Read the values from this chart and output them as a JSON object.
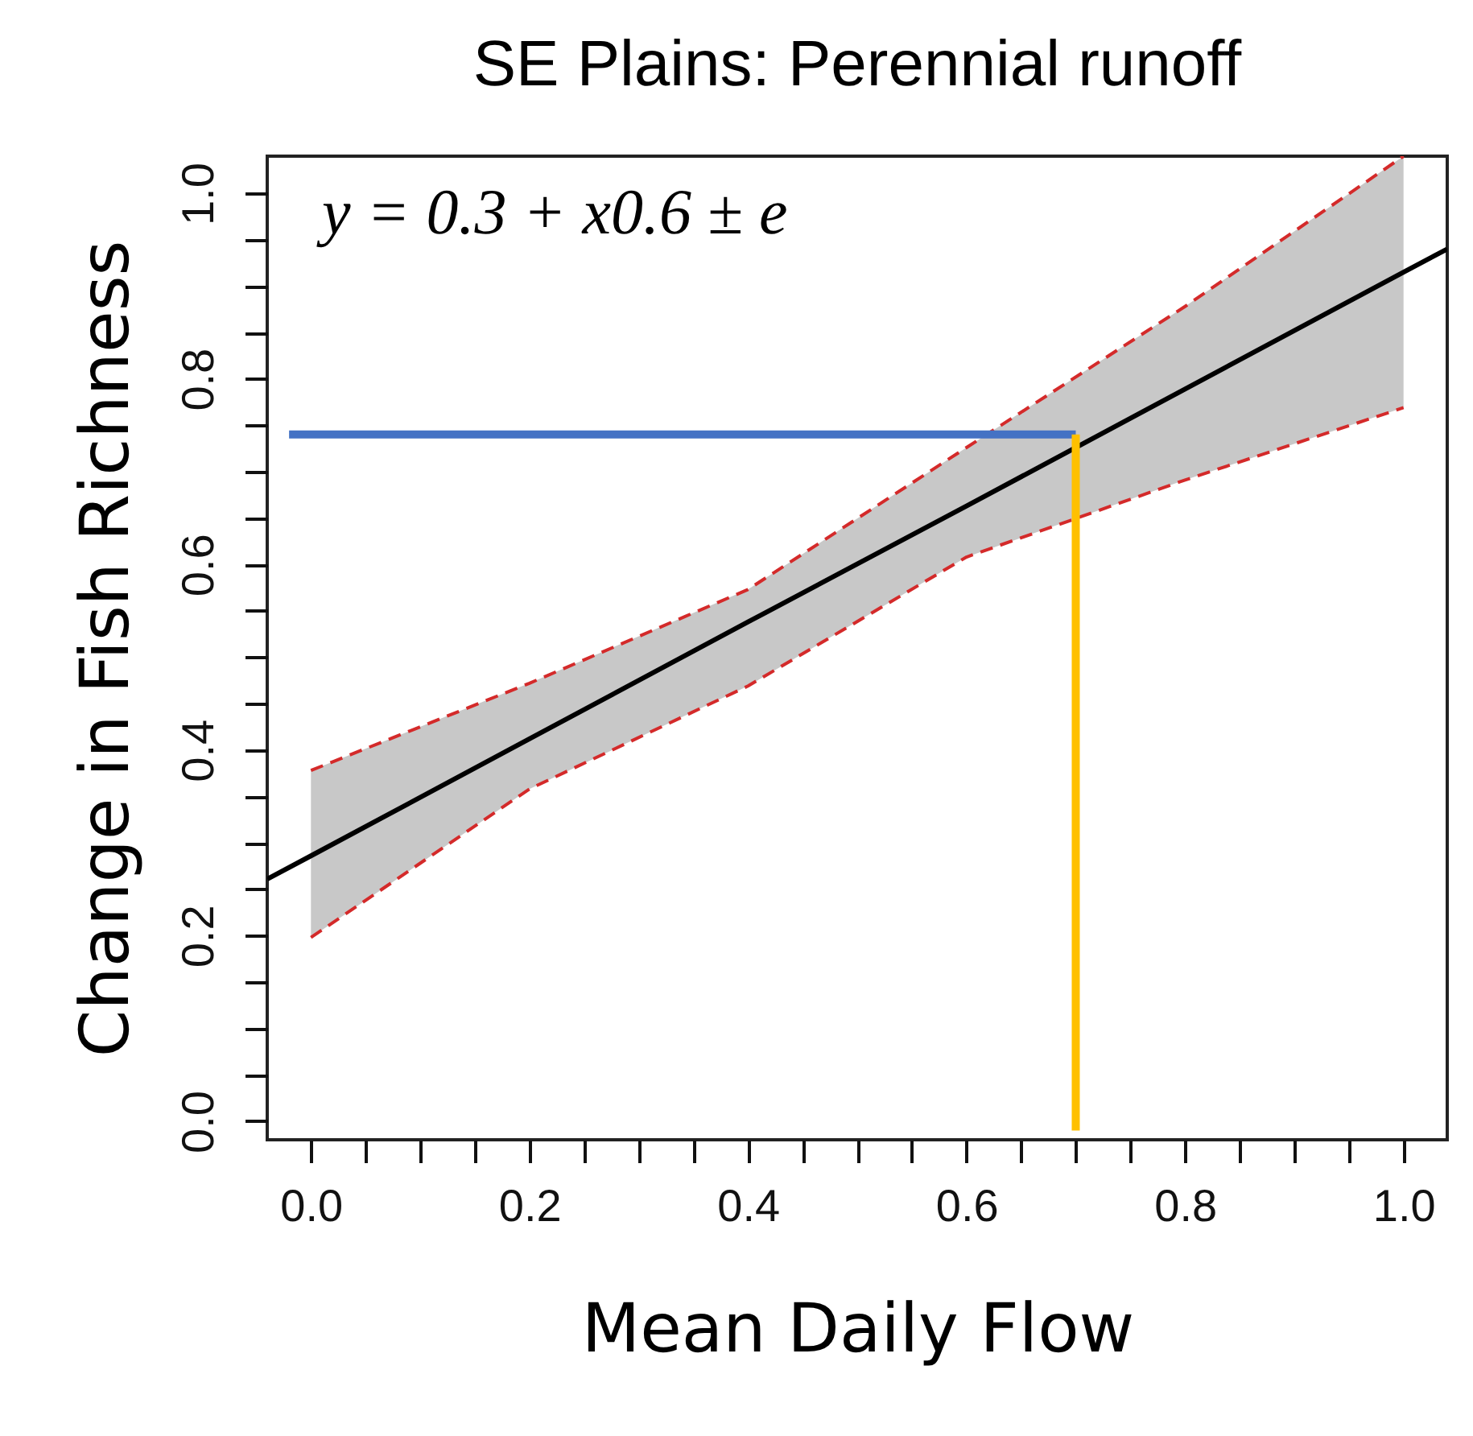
{
  "chart_data": {
    "type": "line",
    "title": "SE Plains: Perennial runoff",
    "xlabel": "Mean Daily Flow",
    "ylabel": "Change in Fish Richness",
    "annotations": [
      "y = 0.3 + x0.6 ± e"
    ],
    "series": [
      {
        "type": "line",
        "color": "#000000",
        "x": [
          -0.04,
          0,
          0.2,
          0.4,
          0.6,
          0.8,
          1.0,
          1.04
        ],
        "values": [
          0.261,
          0.286,
          0.412,
          0.538,
          0.663,
          0.789,
          0.915,
          0.94
        ],
        "lower": [
          null,
          0.198,
          0.358,
          0.469,
          0.608,
          0.691,
          0.769,
          null
        ],
        "upper": [
          null,
          0.378,
          0.472,
          0.573,
          0.726,
          0.878,
          1.04,
          null
        ]
      },
      {
        "type": "line",
        "color": "#d42a2a",
        "line_style": "dashed",
        "x": [
          0,
          0.2,
          0.4,
          0.6,
          0.8,
          1.0
        ],
        "values": [
          0.198,
          0.358,
          0.469,
          0.608,
          0.691,
          0.769
        ]
      },
      {
        "type": "line",
        "color": "#d42a2a",
        "line_style": "dashed",
        "x": [
          0,
          0.2,
          0.4,
          0.6,
          0.8,
          1.0
        ],
        "values": [
          0.378,
          0.472,
          0.573,
          0.726,
          0.878,
          1.04
        ]
      },
      {
        "type": "line",
        "color": "#4472c4",
        "x": [
          -0.02,
          0.7
        ],
        "values": [
          0.74,
          0.74
        ]
      },
      {
        "type": "line",
        "color": "#ffc000",
        "x": [
          0.7,
          0.7
        ],
        "values": [
          -0.01,
          0.74
        ]
      }
    ],
    "xlim": [
      -0.04,
      1.04
    ],
    "ylim": [
      -0.02,
      1.04
    ],
    "xticks": [
      {
        "value": 0,
        "label": "0.0"
      },
      {
        "value": 0.05,
        "label": null
      },
      {
        "value": 0.1,
        "label": null
      },
      {
        "value": 0.15,
        "label": null
      },
      {
        "value": 0.2,
        "label": "0.2"
      },
      {
        "value": 0.25,
        "label": null
      },
      {
        "value": 0.3,
        "label": null
      },
      {
        "value": 0.35,
        "label": null
      },
      {
        "value": 0.4,
        "label": "0.4"
      },
      {
        "value": 0.45,
        "label": null
      },
      {
        "value": 0.5,
        "label": null
      },
      {
        "value": 0.55,
        "label": null
      },
      {
        "value": 0.6,
        "label": "0.6"
      },
      {
        "value": 0.65,
        "label": null
      },
      {
        "value": 0.7,
        "label": null
      },
      {
        "value": 0.75,
        "label": null
      },
      {
        "value": 0.8,
        "label": "0.8"
      },
      {
        "value": 0.85,
        "label": null
      },
      {
        "value": 0.9,
        "label": null
      },
      {
        "value": 0.95,
        "label": null
      },
      {
        "value": 1.0,
        "label": "1.0"
      }
    ],
    "yticks": [
      {
        "value": 0,
        "label": "0.0"
      },
      {
        "value": 0.05,
        "label": null
      },
      {
        "value": 0.1,
        "label": null
      },
      {
        "value": 0.15,
        "label": null
      },
      {
        "value": 0.2,
        "label": "0.2"
      },
      {
        "value": 0.25,
        "label": null
      },
      {
        "value": 0.3,
        "label": null
      },
      {
        "value": 0.35,
        "label": null
      },
      {
        "value": 0.4,
        "label": "0.4"
      },
      {
        "value": 0.45,
        "label": null
      },
      {
        "value": 0.5,
        "label": null
      },
      {
        "value": 0.55,
        "label": null
      },
      {
        "value": 0.6,
        "label": "0.6"
      },
      {
        "value": 0.65,
        "label": null
      },
      {
        "value": 0.7,
        "label": null
      },
      {
        "value": 0.75,
        "label": null
      },
      {
        "value": 0.8,
        "label": "0.8"
      },
      {
        "value": 0.85,
        "label": null
      },
      {
        "value": 0.9,
        "label": null
      },
      {
        "value": 0.95,
        "label": null
      },
      {
        "value": 1.0,
        "label": "1.0"
      }
    ],
    "grid": false,
    "line_style": "solid"
  }
}
